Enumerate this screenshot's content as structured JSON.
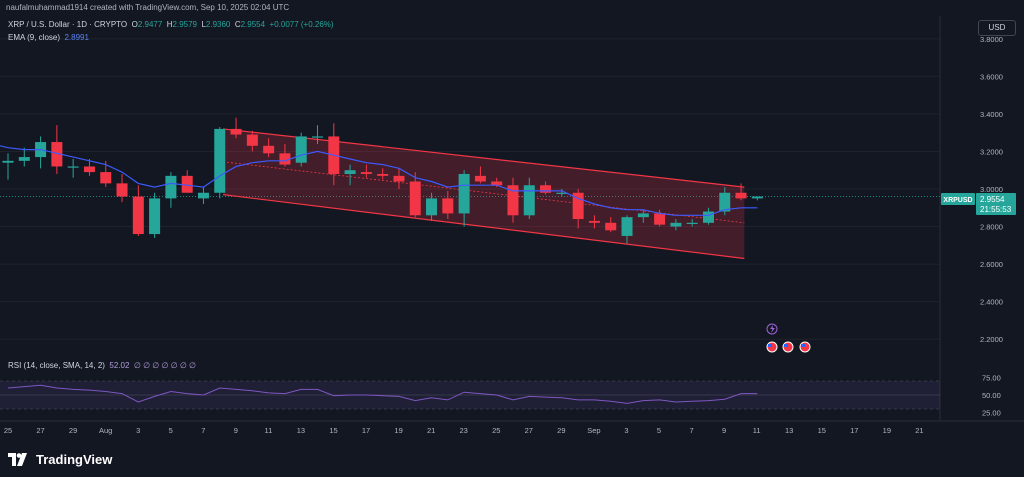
{
  "header": {
    "caption": "naufalmuhammad1914 created with TradingView.com, Sep 10, 2025 02:04 UTC"
  },
  "legend": {
    "symbol": "XRP / U.S. Dollar · 1D · CRYPTO",
    "o_label": "O",
    "o": "2.9477",
    "h_label": "H",
    "h": "2.9579",
    "l_label": "L",
    "l": "2.9360",
    "c_label": "C",
    "c": "2.9554",
    "change": "+0.0077 (+0.26%)",
    "ema_label": "EMA (9, close)",
    "ema": "2.8991",
    "rsi_label": "RSI (14, close, SMA, 14, 2)",
    "rsi": "52.02",
    "rsi_extra": "∅ ∅ ∅ ∅ ∅ ∅ ∅"
  },
  "currency_button": "USD",
  "price_badge": {
    "symbol": "XRPUSD",
    "price": "2.9554",
    "countdown": "21:55:53"
  },
  "price_axis": [
    "3.8000",
    "3.6000",
    "3.4000",
    "3.2000",
    "3.0000",
    "2.8000",
    "2.6000",
    "2.4000",
    "2.2000"
  ],
  "rsi_axis": [
    "75.00",
    "50.00",
    "25.00"
  ],
  "time_axis": [
    "25",
    "27",
    "29",
    "Aug",
    "3",
    "5",
    "7",
    "9",
    "11",
    "13",
    "15",
    "17",
    "19",
    "21",
    "23",
    "25",
    "27",
    "29",
    "Sep",
    "3",
    "5",
    "7",
    "9",
    "11",
    "13",
    "15",
    "17",
    "19",
    "21"
  ],
  "brand": "TradingView",
  "colors": {
    "up": "#26a69a",
    "down": "#f23645",
    "ema": "#3d5afe",
    "channel": "#f23645",
    "rsi": "#7e57c2"
  },
  "chart_data": {
    "type": "candlestick",
    "symbol": "XRPUSD",
    "interval": "1D",
    "y_range": [
      2.1,
      3.9
    ],
    "candles": [
      {
        "o": 3.14,
        "h": 3.19,
        "l": 3.05,
        "c": 3.15
      },
      {
        "o": 3.15,
        "h": 3.22,
        "l": 3.12,
        "c": 3.17
      },
      {
        "o": 3.17,
        "h": 3.28,
        "l": 3.11,
        "c": 3.25
      },
      {
        "o": 3.25,
        "h": 3.34,
        "l": 3.08,
        "c": 3.12
      },
      {
        "o": 3.12,
        "h": 3.16,
        "l": 3.06,
        "c": 3.12
      },
      {
        "o": 3.12,
        "h": 3.16,
        "l": 3.07,
        "c": 3.09
      },
      {
        "o": 3.09,
        "h": 3.15,
        "l": 3.01,
        "c": 3.03
      },
      {
        "o": 3.03,
        "h": 3.08,
        "l": 2.93,
        "c": 2.96
      },
      {
        "o": 2.96,
        "h": 3.02,
        "l": 2.75,
        "c": 2.76
      },
      {
        "o": 2.76,
        "h": 2.98,
        "l": 2.74,
        "c": 2.95
      },
      {
        "o": 2.95,
        "h": 3.09,
        "l": 2.9,
        "c": 3.07
      },
      {
        "o": 3.07,
        "h": 3.1,
        "l": 2.98,
        "c": 2.98
      },
      {
        "o": 2.95,
        "h": 3.01,
        "l": 2.92,
        "c": 2.98
      },
      {
        "o": 2.98,
        "h": 3.33,
        "l": 2.95,
        "c": 3.32
      },
      {
        "o": 3.32,
        "h": 3.38,
        "l": 3.27,
        "c": 3.29
      },
      {
        "o": 3.29,
        "h": 3.31,
        "l": 3.2,
        "c": 3.23
      },
      {
        "o": 3.23,
        "h": 3.27,
        "l": 3.17,
        "c": 3.19
      },
      {
        "o": 3.19,
        "h": 3.24,
        "l": 3.12,
        "c": 3.13
      },
      {
        "o": 3.14,
        "h": 3.3,
        "l": 3.12,
        "c": 3.28
      },
      {
        "o": 3.28,
        "h": 3.34,
        "l": 3.24,
        "c": 3.28
      },
      {
        "o": 3.28,
        "h": 3.35,
        "l": 3.02,
        "c": 3.08
      },
      {
        "o": 3.08,
        "h": 3.13,
        "l": 3.02,
        "c": 3.1
      },
      {
        "o": 3.09,
        "h": 3.13,
        "l": 3.06,
        "c": 3.08
      },
      {
        "o": 3.08,
        "h": 3.11,
        "l": 3.05,
        "c": 3.07
      },
      {
        "o": 3.07,
        "h": 3.11,
        "l": 3.0,
        "c": 3.04
      },
      {
        "o": 3.04,
        "h": 3.09,
        "l": 2.85,
        "c": 2.86
      },
      {
        "o": 2.86,
        "h": 2.98,
        "l": 2.83,
        "c": 2.95
      },
      {
        "o": 2.95,
        "h": 2.99,
        "l": 2.84,
        "c": 2.87
      },
      {
        "o": 2.87,
        "h": 3.1,
        "l": 2.8,
        "c": 3.08
      },
      {
        "o": 3.07,
        "h": 3.12,
        "l": 3.03,
        "c": 3.04
      },
      {
        "o": 3.04,
        "h": 3.06,
        "l": 3.01,
        "c": 3.02
      },
      {
        "o": 3.02,
        "h": 3.06,
        "l": 2.82,
        "c": 2.86
      },
      {
        "o": 2.86,
        "h": 3.06,
        "l": 2.84,
        "c": 3.02
      },
      {
        "o": 3.02,
        "h": 3.04,
        "l": 2.97,
        "c": 2.98
      },
      {
        "o": 2.98,
        "h": 3.0,
        "l": 2.96,
        "c": 2.98
      },
      {
        "o": 2.98,
        "h": 3.0,
        "l": 2.79,
        "c": 2.84
      },
      {
        "o": 2.83,
        "h": 2.86,
        "l": 2.79,
        "c": 2.82
      },
      {
        "o": 2.82,
        "h": 2.85,
        "l": 2.77,
        "c": 2.78
      },
      {
        "o": 2.75,
        "h": 2.86,
        "l": 2.71,
        "c": 2.85
      },
      {
        "o": 2.85,
        "h": 2.89,
        "l": 2.82,
        "c": 2.87
      },
      {
        "o": 2.87,
        "h": 2.89,
        "l": 2.8,
        "c": 2.81
      },
      {
        "o": 2.8,
        "h": 2.84,
        "l": 2.78,
        "c": 2.82
      },
      {
        "o": 2.82,
        "h": 2.84,
        "l": 2.8,
        "c": 2.82
      },
      {
        "o": 2.82,
        "h": 2.9,
        "l": 2.81,
        "c": 2.88
      },
      {
        "o": 2.88,
        "h": 3.01,
        "l": 2.86,
        "c": 2.98
      },
      {
        "o": 2.98,
        "h": 3.03,
        "l": 2.94,
        "c": 2.95
      },
      {
        "o": 2.95,
        "h": 2.96,
        "l": 2.94,
        "c": 2.96
      }
    ],
    "ema": [
      3.22,
      3.21,
      3.21,
      3.19,
      3.17,
      3.15,
      3.13,
      3.09,
      3.03,
      3.01,
      3.03,
      3.02,
      3.01,
      3.07,
      3.12,
      3.14,
      3.15,
      3.15,
      3.18,
      3.2,
      3.18,
      3.16,
      3.14,
      3.13,
      3.11,
      3.06,
      3.04,
      3.01,
      3.02,
      3.02,
      3.02,
      2.99,
      2.99,
      2.99,
      2.99,
      2.95,
      2.92,
      2.9,
      2.89,
      2.89,
      2.87,
      2.86,
      2.86,
      2.86,
      2.89,
      2.9,
      2.9
    ],
    "rsi": [
      60,
      62,
      64,
      60,
      58,
      57,
      55,
      52,
      40,
      48,
      55,
      52,
      50,
      60,
      58,
      56,
      53,
      52,
      58,
      58,
      49,
      50,
      50,
      49,
      48,
      42,
      46,
      43,
      54,
      52,
      50,
      43,
      48,
      47,
      46,
      43,
      43,
      41,
      38,
      42,
      43,
      40,
      41,
      42,
      44,
      52,
      52
    ],
    "rsi_range": [
      20,
      80
    ],
    "channel": {
      "upper": [
        [
          13.2,
          3.32
        ],
        [
          45.2,
          3.01
        ]
      ],
      "lower": [
        [
          13.2,
          2.97
        ],
        [
          45.2,
          2.63
        ]
      ]
    }
  }
}
